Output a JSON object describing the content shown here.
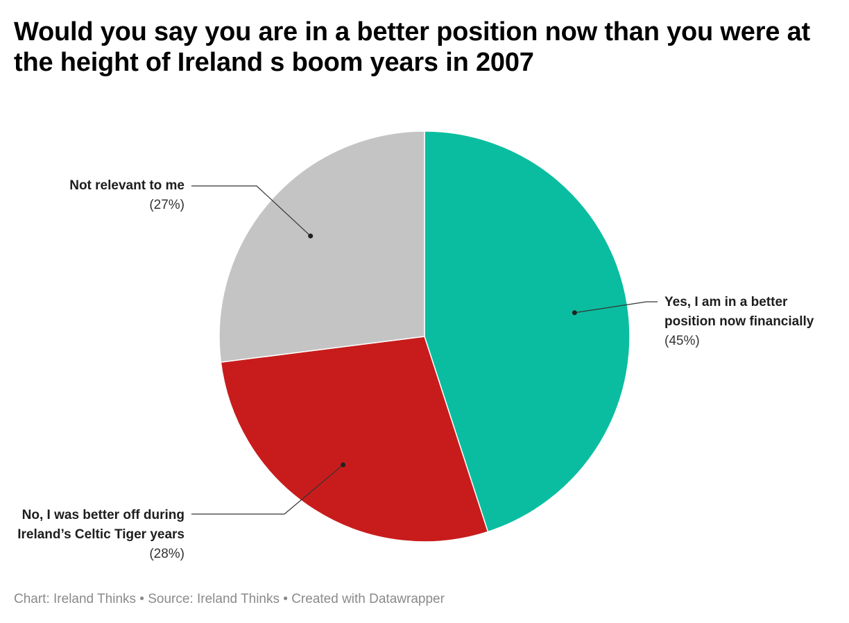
{
  "title": "Would you say you are in a better position now than you were at the height of Ireland s boom years in 2007",
  "footer": {
    "chart_label": "Chart: Ireland Thinks",
    "source_label": "Source: Ireland Thinks",
    "created_label": "Created with Datawrapper",
    "separator": "•"
  },
  "chart_data": {
    "type": "pie",
    "title": "Would you say you are in a better position now than you were at the height of Ireland s boom years in 2007",
    "slices": [
      {
        "label": "Yes, I am in a better position now financially",
        "value": 45,
        "pct_label": "(45%)",
        "color": "#0bbda0"
      },
      {
        "label": "No, I was better off during Ireland’s Celtic Tiger years",
        "value": 28,
        "pct_label": "(28%)",
        "color": "#c81c1c"
      },
      {
        "label": "Not relevant to me",
        "value": 27,
        "pct_label": "(27%)",
        "color": "#c4c4c4"
      }
    ],
    "start_angle": "12 o'clock",
    "direction": "clockwise",
    "legend": "none",
    "labels": "outside with leader lines"
  }
}
